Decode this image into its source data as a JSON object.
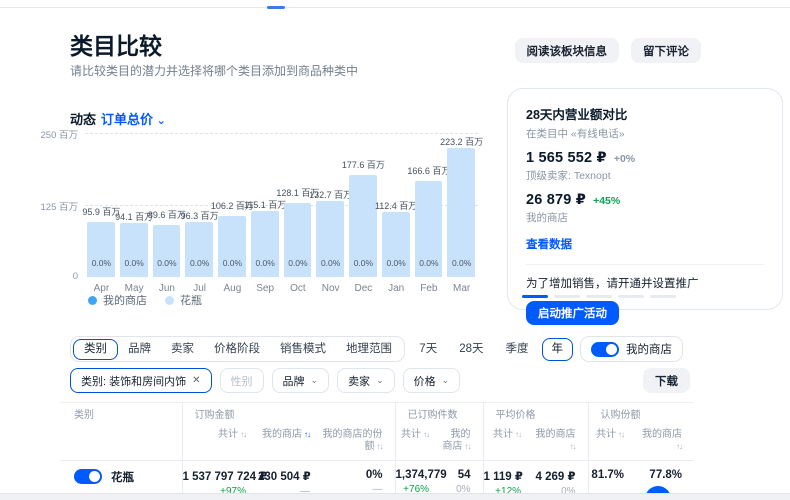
{
  "page": {
    "title": "类目比较",
    "subtitle": "请比较类目的潜力并选择将哪个类目添加到商品种类中",
    "actions": {
      "read_info": "阅读该板块信息",
      "leave_review": "留下评论"
    }
  },
  "chart_header": {
    "label": "动态",
    "metric": "订单总价"
  },
  "chart_data": {
    "type": "bar",
    "title": "动态 订单总价",
    "categories": [
      "Apr",
      "May",
      "Jun",
      "Jul",
      "Aug",
      "Sep",
      "Oct",
      "Nov",
      "Dec",
      "Jan",
      "Feb",
      "Mar"
    ],
    "unit": "百万",
    "ylim": [
      0,
      250
    ],
    "yticks": [
      {
        "value": 250,
        "label": "250 百万"
      },
      {
        "value": 125,
        "label": "125 百万"
      },
      {
        "value": 0,
        "label": "0"
      }
    ],
    "grid": "dashed-horizontal",
    "legend_position": "bottom",
    "series": [
      {
        "name": "我的商店",
        "color": "#3fa6f2",
        "display": "percent_inside_bars",
        "values": [
          0,
          0,
          0,
          0,
          0,
          0,
          0,
          0,
          0,
          0,
          0,
          0
        ]
      },
      {
        "name": "花瓶",
        "color": "#c9e2fb",
        "values": [
          95.9,
          94.1,
          89.6,
          96.3,
          106.2,
          115.1,
          128.1,
          132.7,
          177.6,
          112.4,
          166.6,
          223.2
        ]
      }
    ]
  },
  "promo_card": {
    "title": "28天内营业额对比",
    "subtitle": "在类目中 «有线电话»",
    "top_seller": {
      "value": "1 565 552 ₽",
      "change": "+0%",
      "label": "顶级卖家: Texnopt"
    },
    "my_shop": {
      "value": "26 879 ₽",
      "change": "+45%",
      "label": "我的商店"
    },
    "link": "查看数据",
    "promo_text": "为了增加销售，请开通并设置推广",
    "promo_button": "启动推广活动",
    "carousel": {
      "count": 5,
      "active": 0
    }
  },
  "filters": {
    "dimension_tabs": [
      "类别",
      "品牌",
      "卖家",
      "价格阶段",
      "销售模式",
      "地理范围"
    ],
    "dimension_active": 0,
    "period_tabs": [
      "7天",
      "28天",
      "季度",
      "年"
    ],
    "period_active": 3,
    "my_shop_toggle": {
      "label": "我的商店",
      "on": true
    },
    "chips": [
      {
        "label": "类别: 装饰和房间内饰",
        "removable": true,
        "active": true
      },
      {
        "label": "性别",
        "disabled": true
      },
      {
        "label": "品牌",
        "dropdown": true
      },
      {
        "label": "卖家",
        "dropdown": true
      },
      {
        "label": "价格",
        "dropdown": true
      }
    ],
    "download_label": "下载"
  },
  "table": {
    "groups": [
      {
        "label": "类别",
        "cols": [
          {
            "label": "",
            "sort": "none"
          }
        ]
      },
      {
        "label": "订购金额",
        "cols": [
          {
            "label": "共计",
            "sort": "gray"
          },
          {
            "label": "我的商店",
            "sort": "blue"
          },
          {
            "label": "我的商店的份额",
            "sort": "gray"
          }
        ]
      },
      {
        "label": "已订购件数",
        "cols": [
          {
            "label": "共计",
            "sort": "gray"
          },
          {
            "label": "我的商店",
            "sort": "gray"
          }
        ]
      },
      {
        "label": "平均价格",
        "cols": [
          {
            "label": "共计",
            "sort": "gray"
          },
          {
            "label": "我的商店",
            "sort": "gray"
          }
        ]
      },
      {
        "label": "认购份额",
        "cols": [
          {
            "label": "共计",
            "sort": "gray"
          },
          {
            "label": "我的商店",
            "sort": "gray"
          }
        ]
      }
    ],
    "rows": [
      {
        "name": "花瓶",
        "toggle_on": true,
        "cells": [
          {
            "v": "1 537 797 724 ₽",
            "s": "+97%",
            "tone": "up"
          },
          {
            "v": "230 504 ₽",
            "s": "—",
            "tone": "muted"
          },
          {
            "v": "0%",
            "s": "—",
            "tone": "muted"
          },
          {
            "v": "1,374,779",
            "s": "+76%",
            "tone": "up"
          },
          {
            "v": "54",
            "s": "0%",
            "tone": "muted"
          },
          {
            "v": "1 119 ₽",
            "s": "+12%",
            "tone": "up"
          },
          {
            "v": "4 269 ₽",
            "s": "0%",
            "tone": "muted"
          },
          {
            "v": "81.7%",
            "s": "",
            "tone": "none"
          },
          {
            "v": "77.8%",
            "s": "",
            "tone": "none"
          }
        ]
      }
    ]
  },
  "icons": {
    "chevron_down": "⌄",
    "close": "✕",
    "sort": "↑↓"
  },
  "colors": {
    "accent": "#005bff",
    "bar_fill": "#c9e2fb",
    "my_shop_dot": "#3fa6f2",
    "positive": "#0aa24e"
  }
}
